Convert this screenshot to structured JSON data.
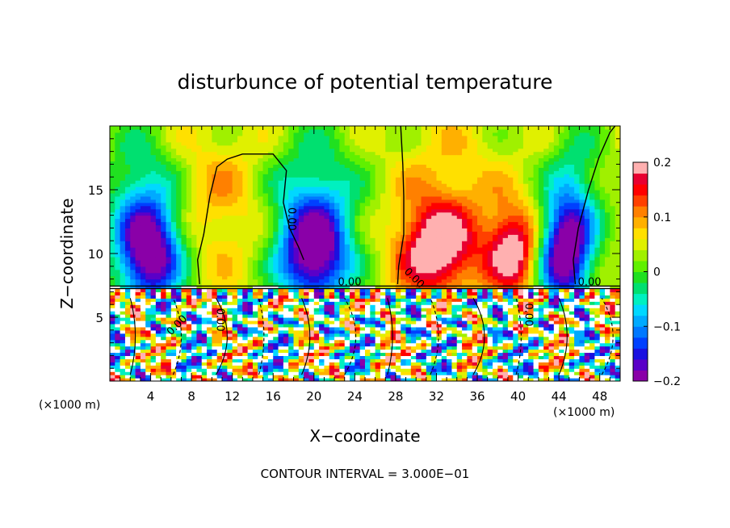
{
  "chart_data": {
    "type": "heatmap",
    "title": "disturbunce of potential temperature",
    "xlabel": "X−coordinate",
    "ylabel": "Z−coordinate",
    "x_unit_left": "(×1000 m)",
    "x_unit_right": "(×1000 m)",
    "xlim": [
      0,
      50
    ],
    "ylim": [
      0,
      20
    ],
    "x_ticks": [
      4,
      8,
      12,
      16,
      20,
      24,
      28,
      32,
      36,
      40,
      44,
      48
    ],
    "y_ticks": [
      5,
      10,
      15
    ],
    "contour_labels": [
      {
        "text": "0.00",
        "x": 17.5,
        "z": 12.7,
        "rotate": 90
      },
      {
        "text": "0.00",
        "x": 23.5,
        "z": 7.5,
        "rotate": 0
      },
      {
        "text": "0.00",
        "x": 29.6,
        "z": 7.9,
        "rotate": 45
      },
      {
        "text": "0.00",
        "x": 47.0,
        "z": 7.5,
        "rotate": 0
      },
      {
        "text": "0.00",
        "x": 6.8,
        "z": 4.2,
        "rotate": -45
      },
      {
        "text": "0.00",
        "x": 10.5,
        "z": 4.8,
        "rotate": 90
      },
      {
        "text": "0.00",
        "x": 40.7,
        "z": 5.2,
        "rotate": 90
      }
    ],
    "colorbar": {
      "min": -0.2,
      "max": 0.2,
      "tick_values": [
        0.2,
        0.1,
        0,
        -0.1,
        -0.2
      ],
      "tick_labels": [
        "0.2",
        "0.1",
        "0",
        "−0.1",
        "−0.2"
      ],
      "colors": [
        "#8a00a8",
        "#5a00c8",
        "#1a10e0",
        "#0040ff",
        "#0078ff",
        "#00aaff",
        "#00d8ff",
        "#00f0c0",
        "#00e070",
        "#20e020",
        "#60f000",
        "#a0f000",
        "#e0f000",
        "#ffe000",
        "#ffb000",
        "#ff8000",
        "#ff4000",
        "#ff0000",
        "#e80030",
        "#ffb0b0"
      ]
    },
    "note": "CONTOUR INTERVAL = 3.000E−01"
  }
}
